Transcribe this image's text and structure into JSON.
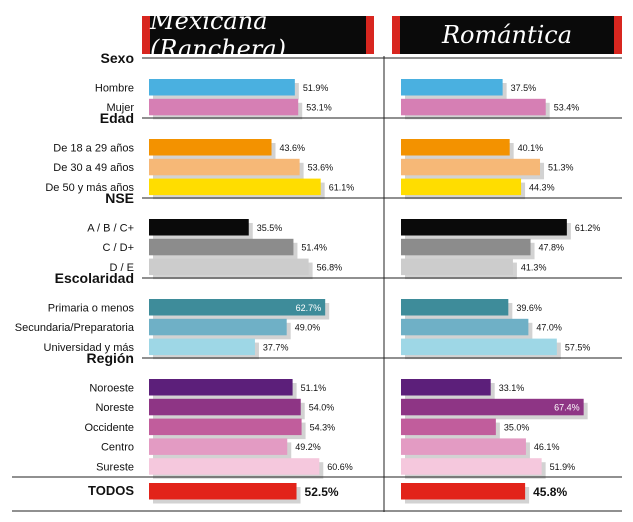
{
  "headers": [
    "Mexicana (Ranchera)",
    "Romántica"
  ],
  "chart_data": [
    {
      "type": "bar",
      "title": "Mexicana (Ranchera)",
      "unit": "%",
      "xlim": [
        0,
        70
      ],
      "groups": [
        {
          "name": "Sexo",
          "rows": [
            {
              "label": "Hombre",
              "value": 51.9,
              "color": "#4ab0e0"
            },
            {
              "label": "Mujer",
              "value": 53.1,
              "color": "#d67fb4"
            }
          ]
        },
        {
          "name": "Edad",
          "rows": [
            {
              "label": "De 18 a 29 años",
              "value": 43.6,
              "color": "#f39200"
            },
            {
              "label": "De 30 a 49 años",
              "value": 53.6,
              "color": "#f6b877"
            },
            {
              "label": "De 50 y más años",
              "value": 61.1,
              "color": "#ffdd00"
            }
          ]
        },
        {
          "name": "NSE",
          "rows": [
            {
              "label": "A / B / C+",
              "value": 35.5,
              "color": "#0a0a0a"
            },
            {
              "label": "C / D+",
              "value": 51.4,
              "color": "#8c8c8c"
            },
            {
              "label": "D / E",
              "value": 56.8,
              "color": "#cccccc"
            }
          ]
        },
        {
          "name": "Escolaridad",
          "rows": [
            {
              "label": "Primaria o menos",
              "value": 62.7,
              "color": "#3e8c9a"
            },
            {
              "label": "Secundaria/Preparatoria",
              "value": 49.0,
              "color": "#6fb0c6"
            },
            {
              "label": "Universidad y más",
              "value": 37.7,
              "color": "#9ed7e6"
            }
          ]
        },
        {
          "name": "Región",
          "rows": [
            {
              "label": "Noroeste",
              "value": 51.1,
              "color": "#5c1f7a"
            },
            {
              "label": "Noreste",
              "value": 54.0,
              "color": "#8e3585"
            },
            {
              "label": "Occidente",
              "value": 54.3,
              "color": "#c15d9c"
            },
            {
              "label": "Centro",
              "value": 49.2,
              "color": "#e39bc3"
            },
            {
              "label": "Sureste",
              "value": 60.6,
              "color": "#f5c8dd"
            }
          ]
        }
      ],
      "total": {
        "label": "TODOS",
        "value": 52.5,
        "color": "#e2231a"
      }
    },
    {
      "type": "bar",
      "title": "Romántica",
      "unit": "%",
      "xlim": [
        0,
        70
      ],
      "groups": [
        {
          "name": "Sexo",
          "rows": [
            {
              "label": "Hombre",
              "value": 37.5,
              "color": "#4ab0e0"
            },
            {
              "label": "Mujer",
              "value": 53.4,
              "color": "#d67fb4"
            }
          ]
        },
        {
          "name": "Edad",
          "rows": [
            {
              "label": "De 18 a 29 años",
              "value": 40.1,
              "color": "#f39200"
            },
            {
              "label": "De 30 a 49 años",
              "value": 51.3,
              "color": "#f6b877"
            },
            {
              "label": "De 50 y más años",
              "value": 44.3,
              "color": "#ffdd00"
            }
          ]
        },
        {
          "name": "NSE",
          "rows": [
            {
              "label": "A / B / C+",
              "value": 61.2,
              "color": "#0a0a0a"
            },
            {
              "label": "C / D+",
              "value": 47.8,
              "color": "#8c8c8c"
            },
            {
              "label": "D / E",
              "value": 41.3,
              "color": "#cccccc"
            }
          ]
        },
        {
          "name": "Escolaridad",
          "rows": [
            {
              "label": "Primaria o menos",
              "value": 39.6,
              "color": "#3e8c9a"
            },
            {
              "label": "Secundaria/Preparatoria",
              "value": 47.0,
              "color": "#6fb0c6"
            },
            {
              "label": "Universidad y más",
              "value": 57.5,
              "color": "#9ed7e6"
            }
          ]
        },
        {
          "name": "Región",
          "rows": [
            {
              "label": "Noroeste",
              "value": 33.1,
              "color": "#5c1f7a"
            },
            {
              "label": "Noreste",
              "value": 67.4,
              "color": "#8e3585"
            },
            {
              "label": "Occidente",
              "value": 35.0,
              "color": "#c15d9c"
            },
            {
              "label": "Centro",
              "value": 46.1,
              "color": "#e39bc3"
            },
            {
              "label": "Sureste",
              "value": 51.9,
              "color": "#f5c8dd"
            }
          ]
        }
      ],
      "total": {
        "label": "TODOS",
        "value": 45.8,
        "color": "#e2231a"
      }
    }
  ],
  "style": {
    "shadow": "#d2d2d2",
    "rule": "#222222"
  }
}
